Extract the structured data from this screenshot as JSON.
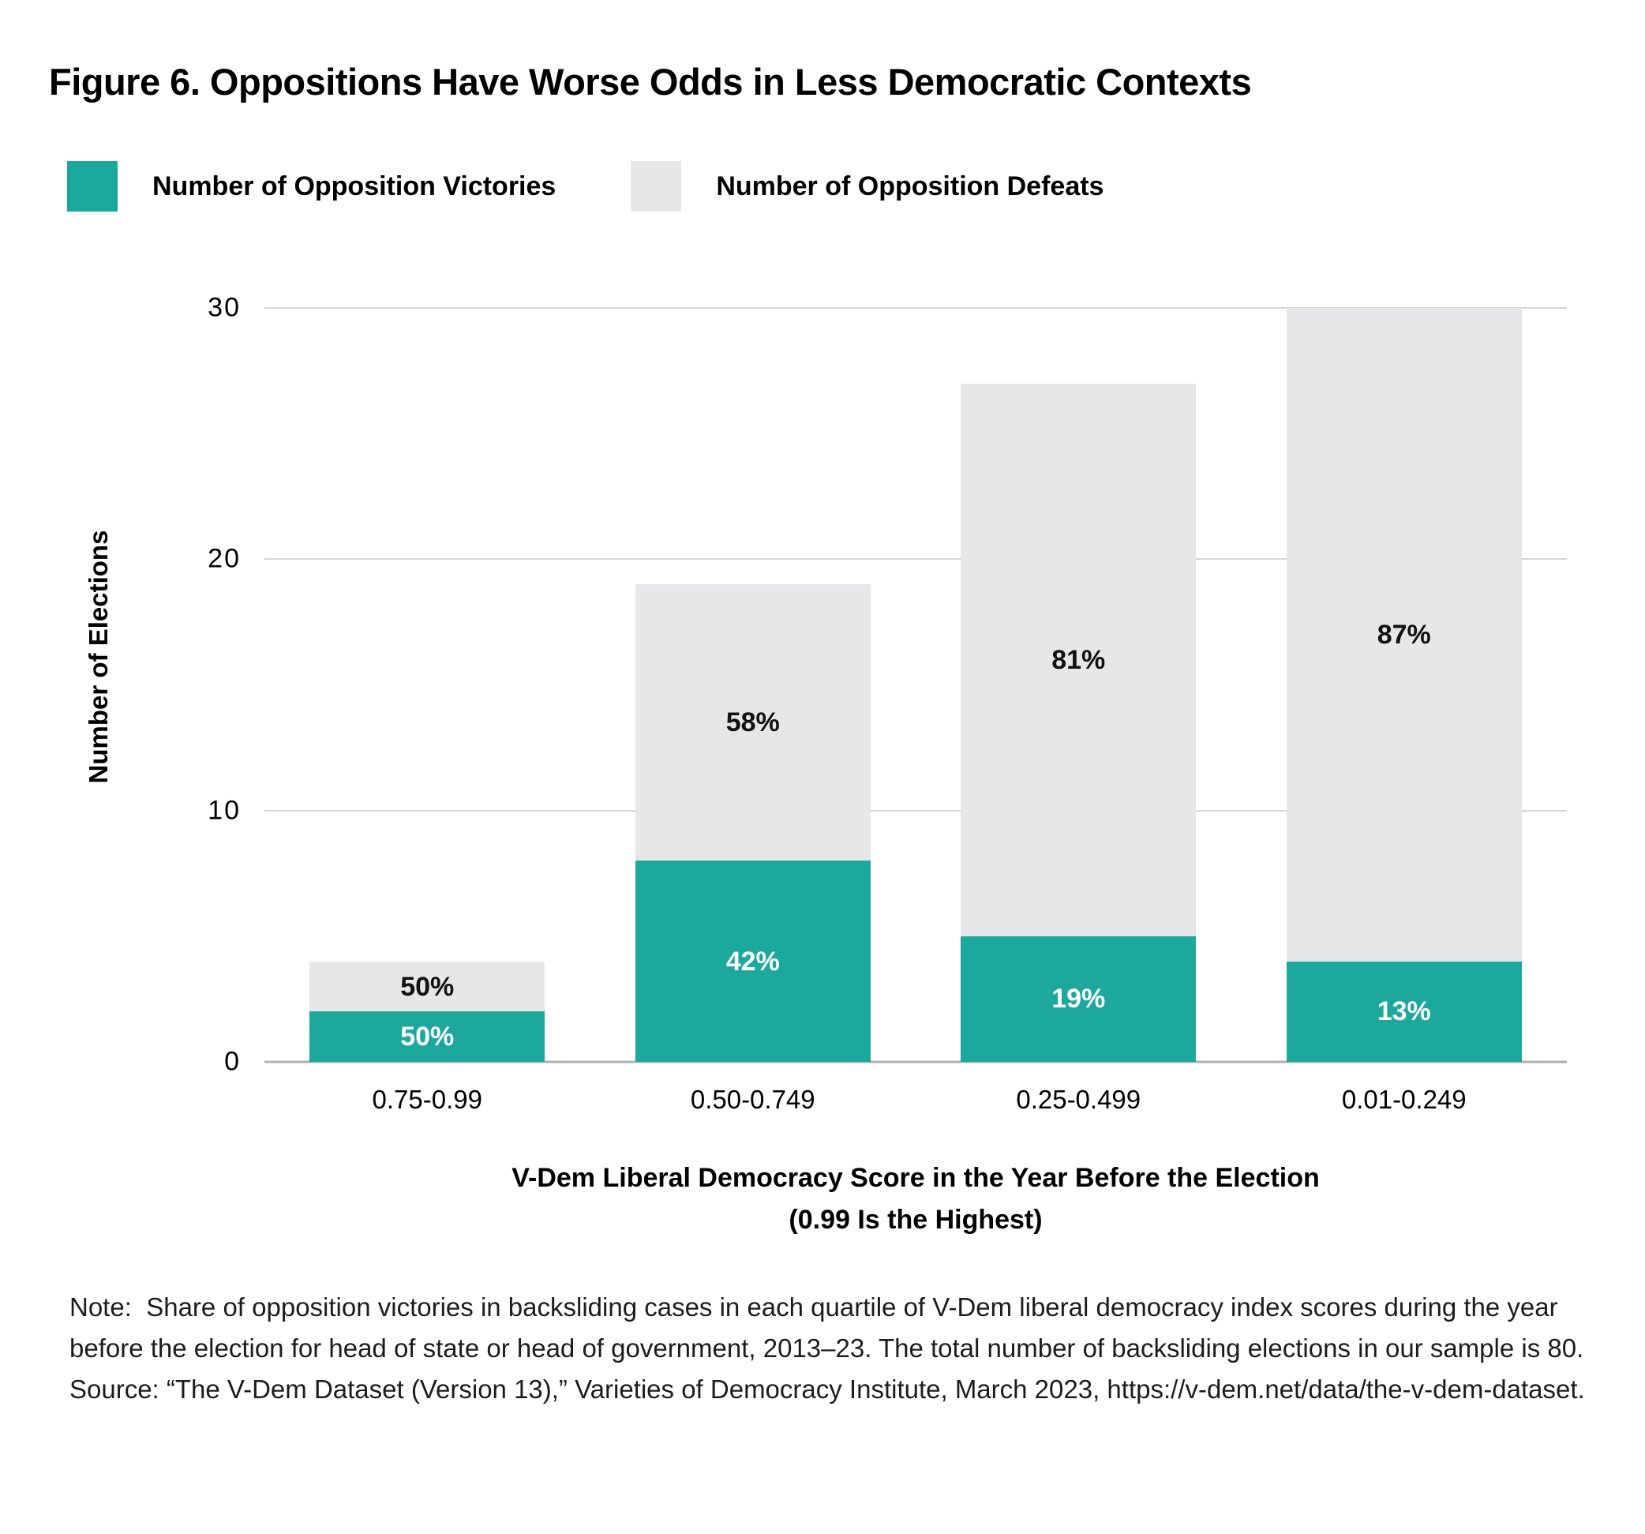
{
  "chart_data": {
    "type": "bar",
    "stacked": true,
    "title": "Figure 6. Oppositions Have Worse Odds in Less Democratic Contexts",
    "categories": [
      "0.75-0.99",
      "0.50-0.749",
      "0.25-0.499",
      "0.01-0.249"
    ],
    "series": [
      {
        "name": "Number of Opposition Victories",
        "color": "#1CA89C",
        "values": [
          2,
          8,
          5,
          4
        ],
        "percent_labels": [
          "50%",
          "42%",
          "19%",
          "13%"
        ],
        "label_color": "#ffffff"
      },
      {
        "name": "Number of Opposition Defeats",
        "color": "#E6E7E8",
        "values": [
          2,
          11,
          22,
          26
        ],
        "percent_labels": [
          "50%",
          "58%",
          "81%",
          "87%"
        ],
        "label_color": "#111111"
      }
    ],
    "totals": [
      4,
      19,
      27,
      30
    ],
    "xlabel_line1": "V-Dem Liberal Democracy Score in the Year Before the Election",
    "xlabel_line2": "(0.99 Is the Highest)",
    "ylabel": "Number of Elections",
    "yticks": [
      0,
      10,
      20,
      30
    ],
    "ylim": [
      0,
      30
    ],
    "grid": "horizontal",
    "legend_position": "top-left"
  },
  "footer": {
    "note": "Note:  Share of opposition victories in backsliding cases in each quartile of V-Dem liberal democracy index scores during the year before the election for head of state or head of government, 2013–23. The total number of backsliding elections in our sample is 80.",
    "source": "Source: “The V-Dem Dataset (Version 13),” Varieties of Democracy Institute, March 2023, https://v-dem.net/data/the-v-dem-dataset."
  }
}
